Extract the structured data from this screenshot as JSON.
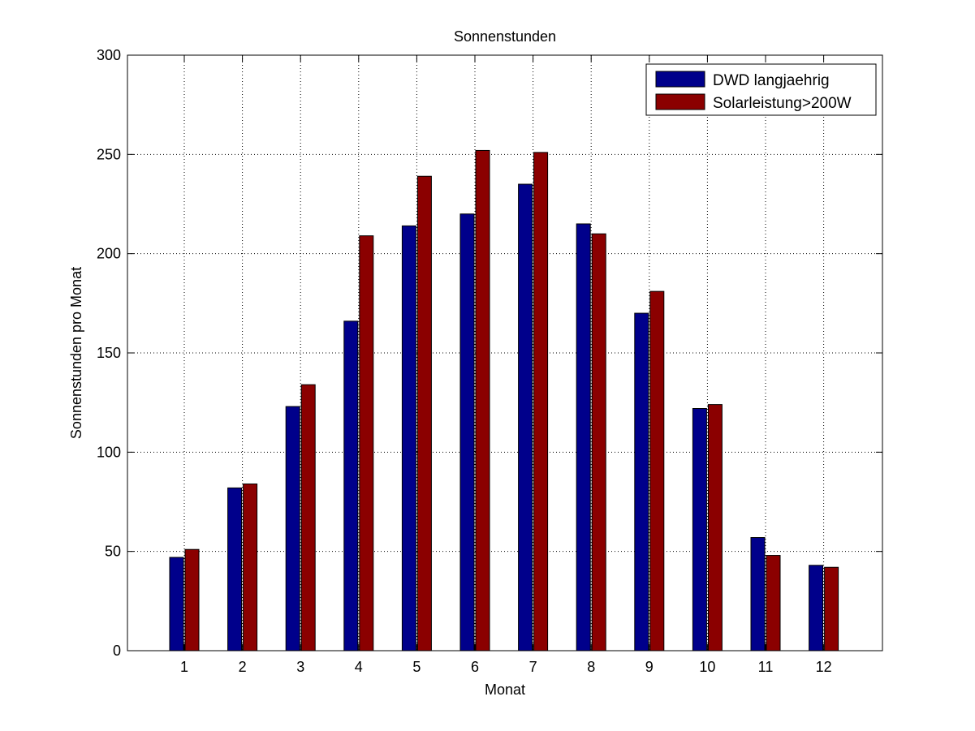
{
  "chart_data": {
    "type": "bar",
    "title": "Sonnenstunden",
    "xlabel": "Monat",
    "ylabel": "Sonnenstunden pro Monat",
    "categories": [
      "1",
      "2",
      "3",
      "4",
      "5",
      "6",
      "7",
      "8",
      "9",
      "10",
      "11",
      "12"
    ],
    "series": [
      {
        "name": "DWD langjaehrig",
        "color": "#00008b",
        "values": [
          47,
          82,
          123,
          166,
          214,
          220,
          235,
          215,
          170,
          122,
          57,
          43
        ]
      },
      {
        "name": "Solarleistung>200W",
        "color": "#8b0000",
        "values": [
          51,
          84,
          134,
          209,
          239,
          252,
          251,
          210,
          181,
          124,
          48,
          42
        ]
      }
    ],
    "ylim": [
      0,
      300
    ],
    "yticks": [
      "0",
      "50",
      "100",
      "150",
      "200",
      "250",
      "300"
    ],
    "grid": true,
    "legend_position": "top-right"
  }
}
